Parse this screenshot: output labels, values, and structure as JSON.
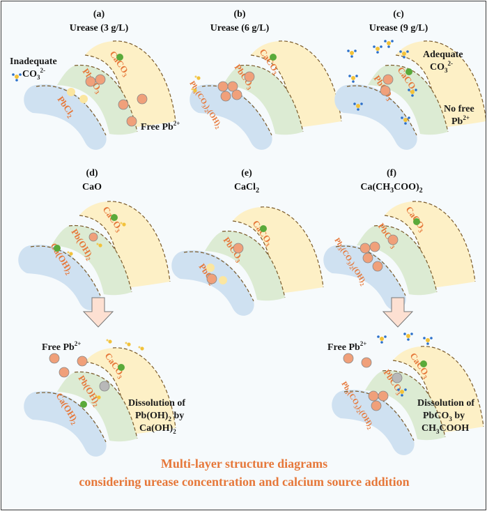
{
  "panels": {
    "a": {
      "letter": "(a)",
      "title": "Urease (3 g/L)"
    },
    "b": {
      "letter": "(b)",
      "title": "Urease (6 g/L)"
    },
    "c": {
      "letter": "(c)",
      "title": "Urease (9 g/L)"
    },
    "d": {
      "letter": "(d)",
      "title": "CaO"
    },
    "e": {
      "letter": "(e)",
      "title": "CaCl",
      "title_sub": "2"
    },
    "f": {
      "letter": "(f)",
      "title": "Ca(CH",
      "title_sub1": "3",
      "title_mid": "COO)",
      "title_sub2": "2"
    }
  },
  "layers": {
    "caco3": {
      "main": "CaCO",
      "sub": "3"
    },
    "pbco3": {
      "main": "PbCO",
      "sub": "3"
    },
    "pbcl2": {
      "main": "PbCl",
      "sub": "2"
    },
    "pb3": {
      "p1": "Pb",
      "s1": "3",
      "p2": "(CO",
      "s2": "3",
      "p3": ")",
      "s3": "2",
      "p4": "(OH)",
      "s4": "2"
    },
    "pboh2": {
      "main": "Pb(OH)",
      "sub": "2"
    },
    "caoh2": {
      "main": "Ca(OH)",
      "sub": "2"
    }
  },
  "notes": {
    "inadequate": "Inadequate",
    "adequate": "Adequate",
    "co3": "CO",
    "co3_sub": "3",
    "co3_sup": "2-",
    "free_pb": "Free Pb",
    "pb_sup": "2+",
    "no_free": "No free",
    "pb": "Pb",
    "dissolution_of": "Dissolution of",
    "pboh2_by": "Pb(OH)",
    "pboh2_by_sub": "2",
    "by": " by",
    "caoh2_text": "Ca(OH)",
    "caoh2_sub": "2",
    "pbco3_text": "PbCO",
    "pbco3_sub": "3",
    "ch3cooh_a": "CH",
    "ch3cooh_sub": "3",
    "ch3cooh_b": "COOH"
  },
  "caption": {
    "line1": "Multi-layer structure diagrams",
    "line2": "considering urease concentration and calcium source addition"
  },
  "colors": {
    "outer_layer": "#fdf0c6",
    "middle_layer": "#dcebd3",
    "inner_layer": "#cfe1f1",
    "dashed": "#7a5a2a",
    "particle": "#f0a07a",
    "green_dot": "#5aaa3a",
    "gray_dot": "#b8b8b8",
    "label_orange": "#e6783a",
    "arrow_fill": "#fde0d2"
  }
}
